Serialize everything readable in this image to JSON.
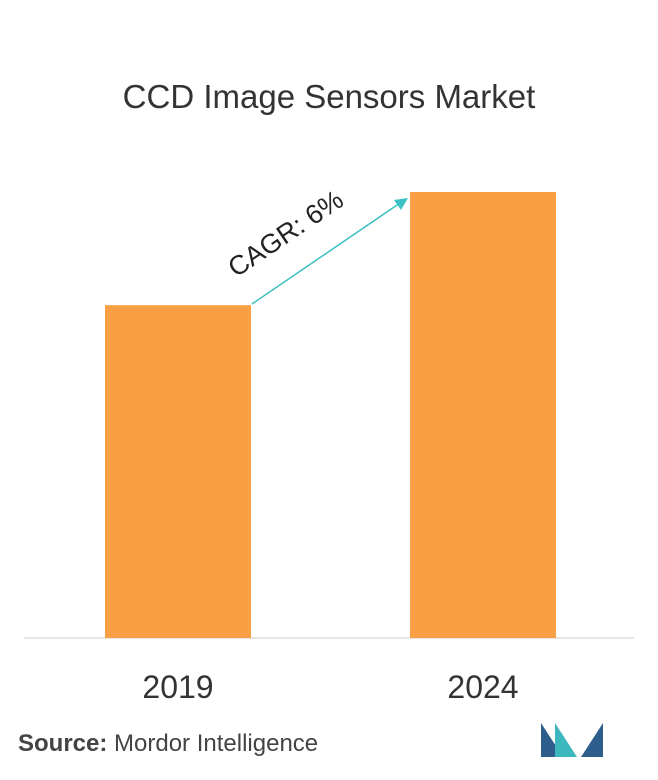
{
  "chart_data": {
    "type": "bar",
    "title": "CCD Image Sensors Market",
    "categories": [
      "2019",
      "2024"
    ],
    "values": [
      1.0,
      1.34
    ],
    "xlabel": "",
    "ylabel": "",
    "ylim": [
      0,
      1.34
    ],
    "grid": false,
    "bar_color": "#F9A044",
    "annotation": {
      "label": "CAGR: 6%",
      "arrow_color": "#3BC1C2"
    }
  },
  "source": {
    "label": "Source:",
    "text": "Mordor Intelligence"
  },
  "logo": {
    "colors": [
      "#2E5F8C",
      "#3BB7BD"
    ]
  }
}
